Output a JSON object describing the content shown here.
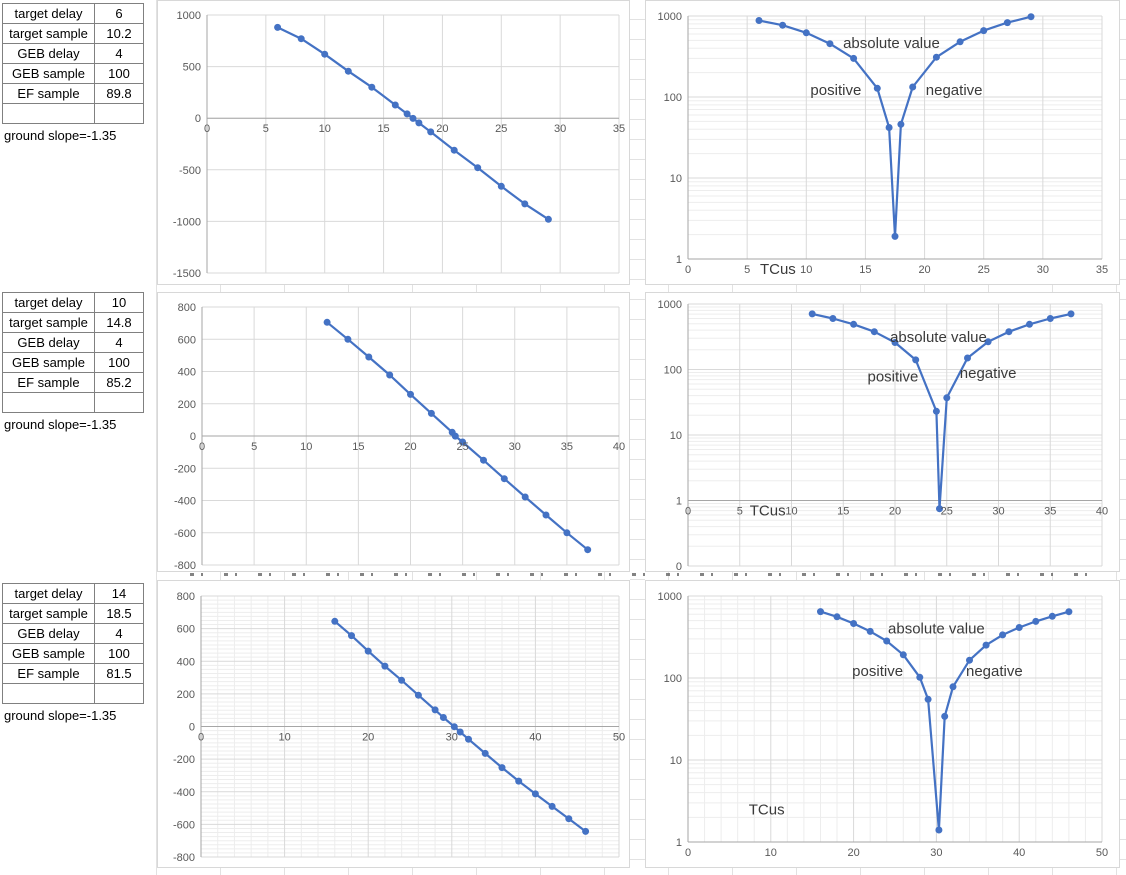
{
  "panels": [
    {
      "rows": [
        {
          "label": "target delay",
          "value": "6"
        },
        {
          "label": "target sample",
          "value": "10.2"
        },
        {
          "label": "GEB delay",
          "value": "4"
        },
        {
          "label": "GEB sample",
          "value": "100"
        },
        {
          "label": "EF sample",
          "value": "89.8"
        },
        {
          "label": "",
          "value": ""
        }
      ],
      "note": "ground slope=-1.35"
    },
    {
      "rows": [
        {
          "label": "target delay",
          "value": "10"
        },
        {
          "label": "target sample",
          "value": "14.8"
        },
        {
          "label": "GEB delay",
          "value": "4"
        },
        {
          "label": "GEB sample",
          "value": "100"
        },
        {
          "label": "EF sample",
          "value": "85.2"
        },
        {
          "label": "",
          "value": ""
        }
      ],
      "note": "ground slope=-1.35"
    },
    {
      "rows": [
        {
          "label": "target delay",
          "value": "14"
        },
        {
          "label": "target sample",
          "value": "18.5"
        },
        {
          "label": "GEB delay",
          "value": "4"
        },
        {
          "label": "GEB sample",
          "value": "100"
        },
        {
          "label": "EF sample",
          "value": "81.5"
        },
        {
          "label": "",
          "value": ""
        }
      ],
      "note": "ground slope=-1.35"
    }
  ],
  "colors": {
    "series": "#4472C4",
    "grid_major": "#D9D9D9",
    "grid_minor": "#EDEDED",
    "axis": "#A6A6A6",
    "tick_text": "#595959",
    "annotation_text": "#3A3A3A"
  },
  "chart_data": {
    "type": "line",
    "series": [
      {
        "x": [
          6,
          8,
          10,
          12,
          14,
          16,
          17,
          17.5,
          18,
          19,
          21,
          23,
          25,
          27,
          29
        ],
        "y": [
          880,
          770,
          620,
          455,
          300,
          128,
          42,
          -1.9,
          -46,
          -133,
          -310,
          -480,
          -660,
          -830,
          -980
        ]
      },
      {
        "x": [
          12,
          14,
          16,
          18,
          20,
          22,
          24,
          24.3,
          25,
          27,
          29,
          31,
          33,
          35,
          37
        ],
        "y": [
          705,
          600,
          490,
          378,
          258,
          140,
          23,
          -0.75,
          -37,
          -150,
          -265,
          -378,
          -490,
          -600,
          -705
        ]
      },
      {
        "x": [
          16,
          18,
          20,
          22,
          24,
          26,
          28,
          29,
          30.3,
          31,
          32,
          34,
          36,
          38,
          40,
          42,
          44,
          46
        ],
        "y": [
          645,
          557,
          462,
          370,
          283,
          192,
          102,
          55,
          -1.4,
          -34,
          -78,
          -165,
          -252,
          -335,
          -413,
          -490,
          -565,
          -643
        ]
      }
    ],
    "charts": [
      {
        "series": 0,
        "abs": false,
        "x": {
          "min": 0,
          "max": 35,
          "step": 5
        },
        "y": {
          "scale": "linear",
          "min": -1500,
          "max": 1000,
          "step": 500
        },
        "cross": 0,
        "annotations": []
      },
      {
        "series": 0,
        "abs": true,
        "x": {
          "min": 0,
          "max": 35,
          "step": 5
        },
        "y": {
          "scale": "log",
          "min_exp": 0,
          "max_exp": 3,
          "labels": [
            "1000",
            "100",
            "10",
            "1"
          ]
        },
        "cross": 1,
        "annotations": [
          {
            "text": "absolute value",
            "x": 17.2,
            "y": 465
          },
          {
            "text": "positive",
            "x": 12.5,
            "y": 122
          },
          {
            "text": "negative",
            "x": 22.5,
            "y": 122
          },
          {
            "text": "TCus",
            "x": 7.6,
            "y": "axis"
          }
        ]
      },
      {
        "series": 1,
        "abs": false,
        "x": {
          "min": 0,
          "max": 40,
          "step": 5
        },
        "y": {
          "scale": "linear",
          "min": -800,
          "max": 800,
          "step": 200
        },
        "cross": 0,
        "annotations": []
      },
      {
        "series": 1,
        "abs": true,
        "x": {
          "min": 0,
          "max": 40,
          "step": 5
        },
        "y": {
          "scale": "log",
          "min_exp": -1,
          "max_exp": 3,
          "labels": [
            "1000",
            "100",
            "10",
            "1",
            "0"
          ]
        },
        "cross": 1,
        "annotations": [
          {
            "text": "absolute value",
            "x": 24.2,
            "y": 315
          },
          {
            "text": "positive",
            "x": 19.8,
            "y": 78
          },
          {
            "text": "negative",
            "x": 29,
            "y": 88
          },
          {
            "text": "TCus",
            "x": 7.7,
            "y": "axis"
          }
        ]
      },
      {
        "series": 2,
        "abs": false,
        "x": {
          "min": 0,
          "max": 50,
          "step": 10,
          "minor": 2
        },
        "y": {
          "scale": "linear",
          "min": -800,
          "max": 800,
          "step": 200,
          "minor": 25
        },
        "cross": 0,
        "annotations": []
      },
      {
        "series": 2,
        "abs": true,
        "x": {
          "min": 0,
          "max": 50,
          "step": 10,
          "minor": 2
        },
        "y": {
          "scale": "log",
          "min_exp": 0,
          "max_exp": 3,
          "labels": [
            "1000",
            "100",
            "10",
            "1"
          ]
        },
        "cross": 1,
        "annotations": [
          {
            "text": "absolute value",
            "x": 30,
            "y": 400
          },
          {
            "text": "positive",
            "x": 22.9,
            "y": 122
          },
          {
            "text": "negative",
            "x": 37,
            "y": 122
          },
          {
            "text": "TCus",
            "x": 9.5,
            "y": 2.5
          }
        ]
      }
    ]
  }
}
